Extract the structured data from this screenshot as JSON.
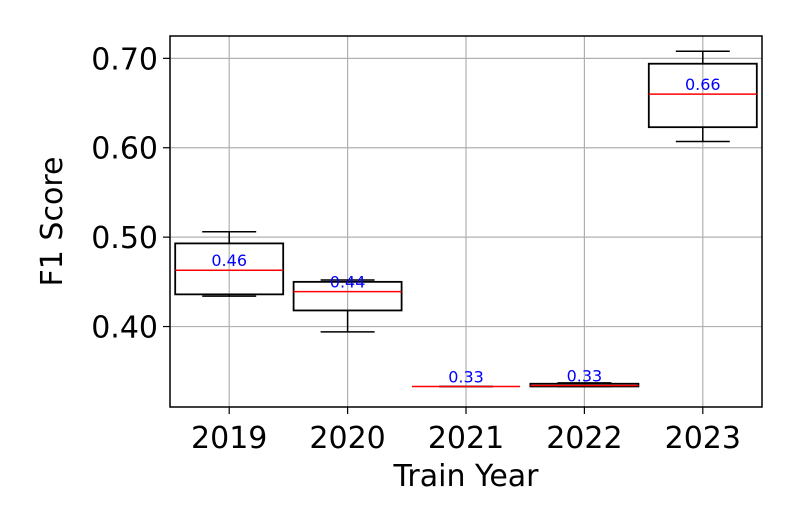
{
  "chart_data": {
    "type": "box",
    "title": "",
    "xlabel": "Train Year",
    "ylabel": "F1 Score",
    "ylim": [
      0.31,
      0.725
    ],
    "yticks": [
      0.4,
      0.5,
      0.6,
      0.7
    ],
    "ytick_labels": [
      "0.40",
      "0.50",
      "0.60",
      "0.70"
    ],
    "grid": true,
    "colors": {
      "box": "#000000",
      "median": "#ff0000",
      "label": "#0000ff",
      "grid": "#b0b0b0"
    },
    "categories": [
      "2019",
      "2020",
      "2021",
      "2022",
      "2023"
    ],
    "boxes": [
      {
        "category": "2019",
        "whisker_low": 0.434,
        "q1": 0.436,
        "median": 0.463,
        "q3": 0.493,
        "whisker_high": 0.506,
        "median_label": "0.46"
      },
      {
        "category": "2020",
        "whisker_low": 0.394,
        "q1": 0.418,
        "median": 0.439,
        "q3": 0.45,
        "whisker_high": 0.452,
        "median_label": "0.44"
      },
      {
        "category": "2021",
        "whisker_low": 0.333,
        "q1": 0.333,
        "median": 0.333,
        "q3": 0.333,
        "whisker_high": 0.333,
        "median_label": "0.33"
      },
      {
        "category": "2022",
        "whisker_low": 0.333,
        "q1": 0.333,
        "median": 0.334,
        "q3": 0.336,
        "whisker_high": 0.337,
        "median_label": "0.33"
      },
      {
        "category": "2023",
        "whisker_low": 0.607,
        "q1": 0.623,
        "median": 0.66,
        "q3": 0.694,
        "whisker_high": 0.708,
        "median_label": "0.66"
      }
    ]
  }
}
